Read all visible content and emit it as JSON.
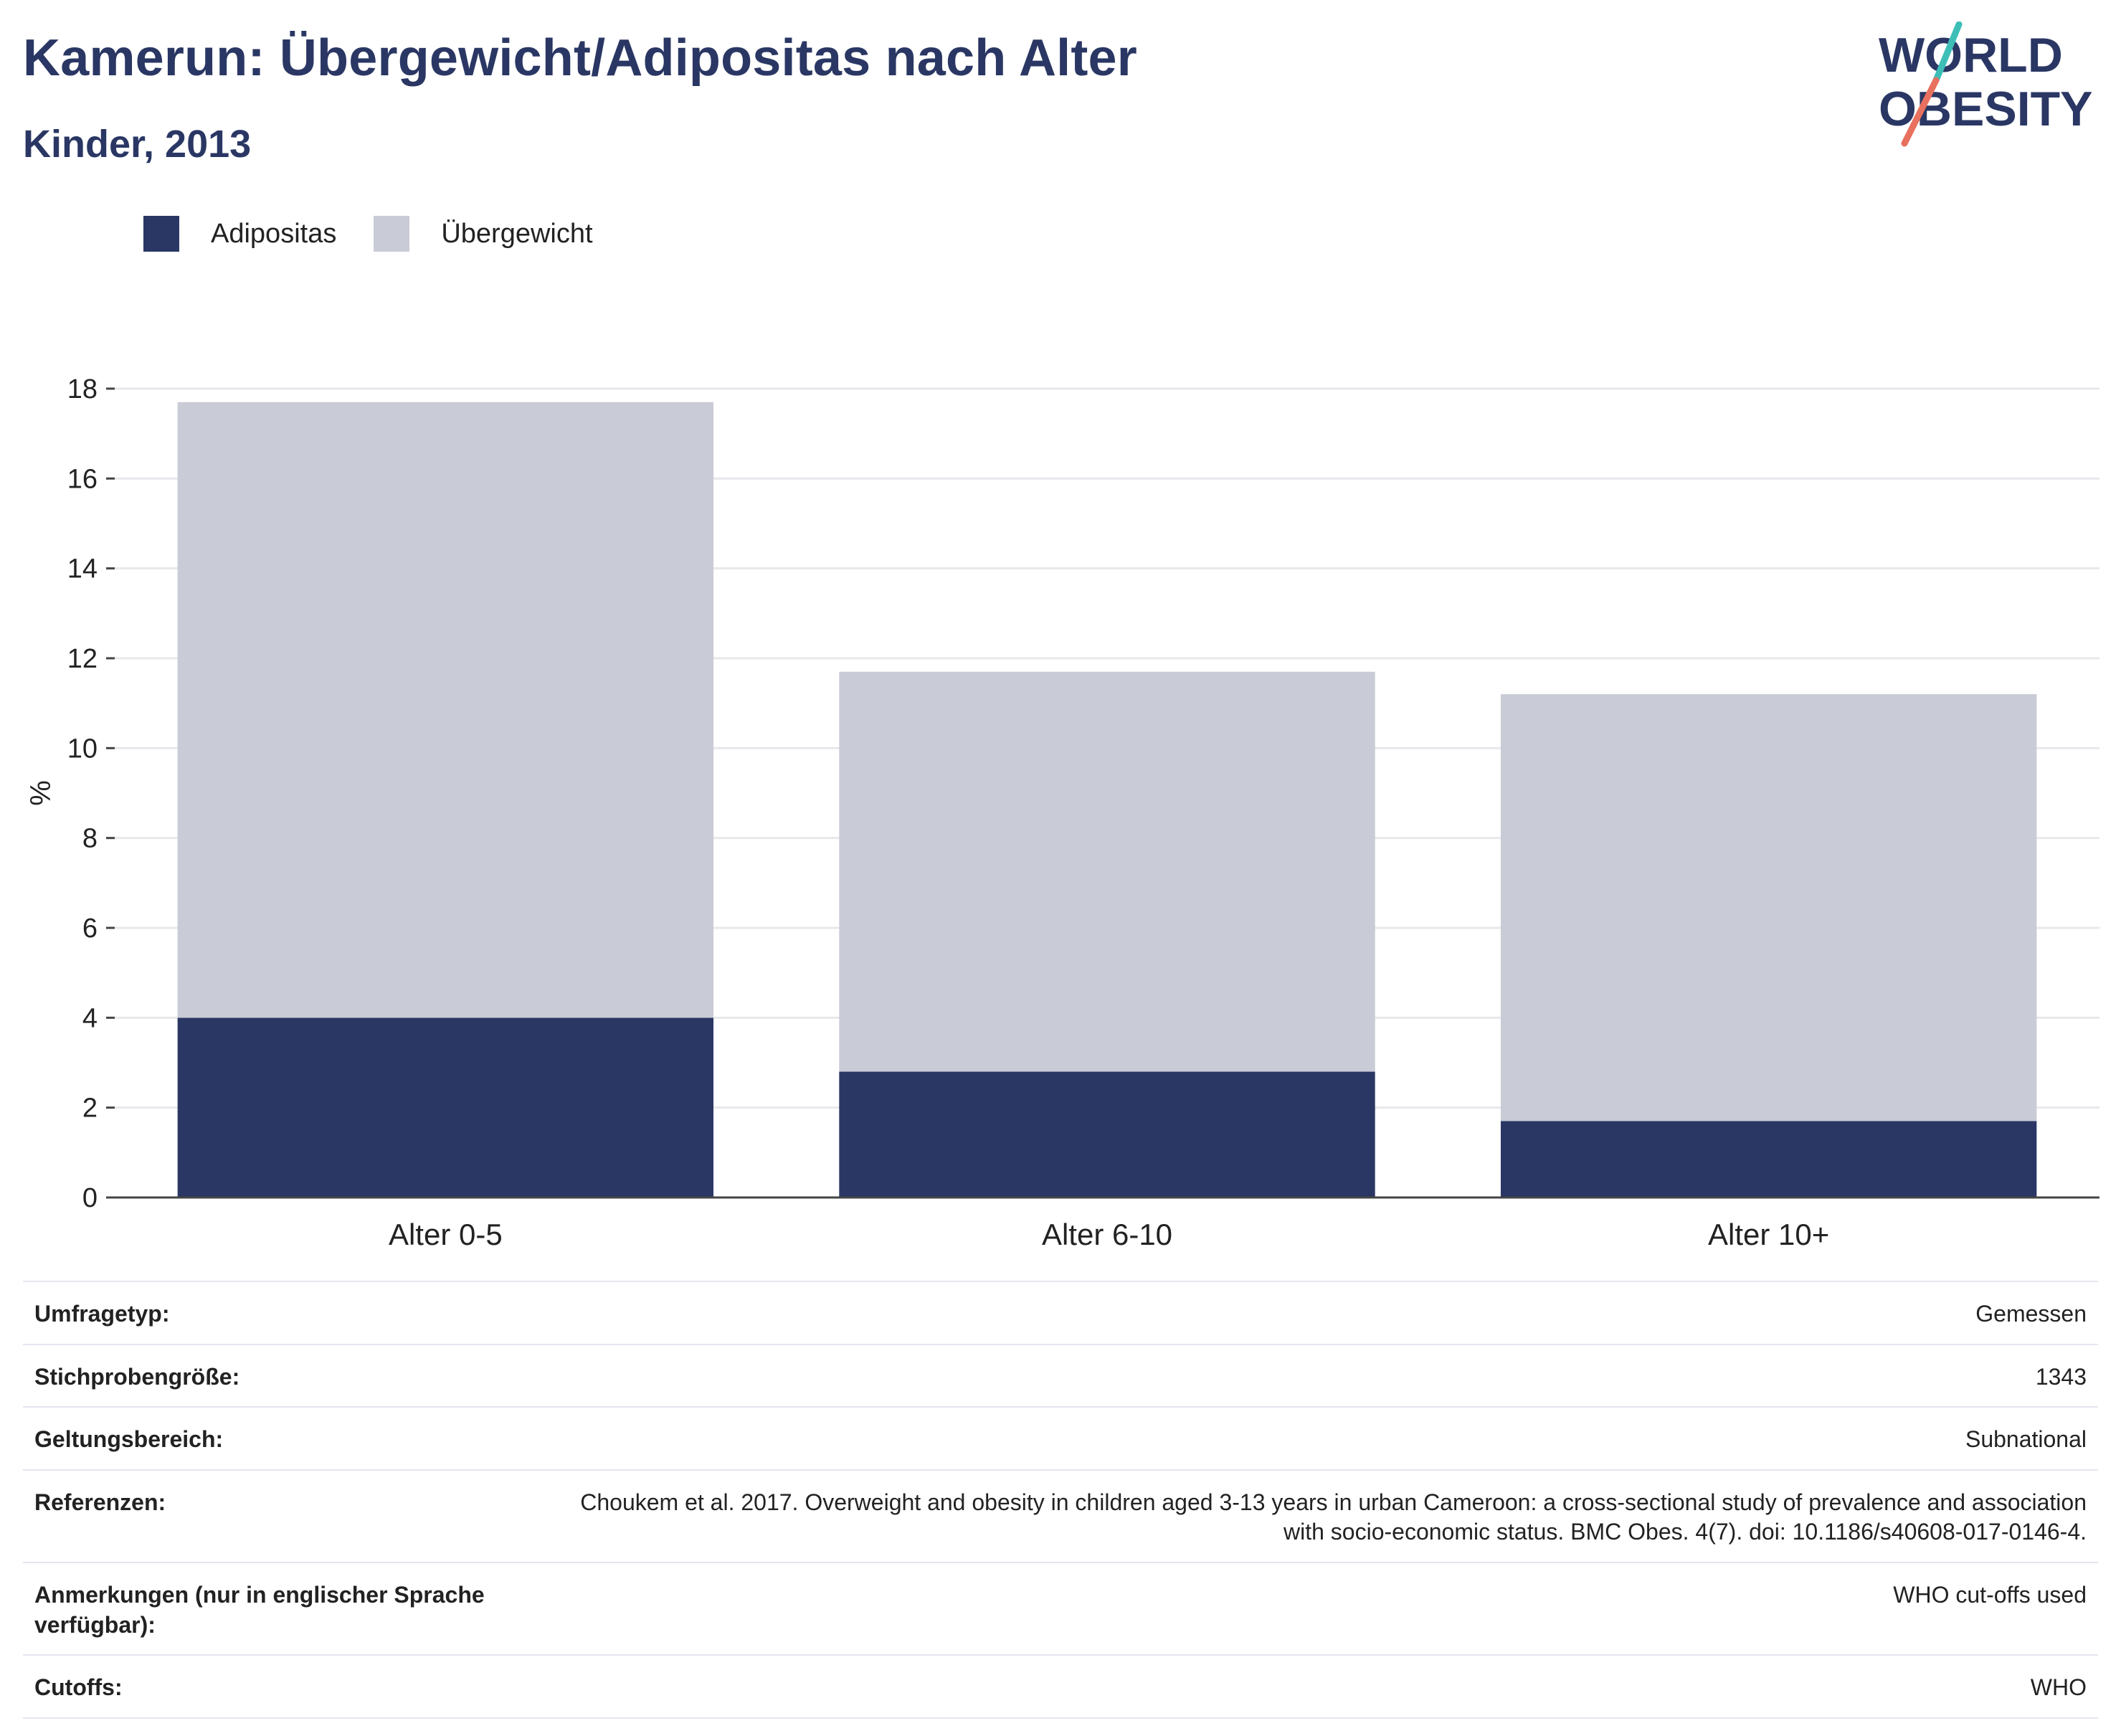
{
  "header": {
    "title": "Kamerun: Übergewicht/Adipositas nach Alter",
    "subtitle": "Kinder, 2013"
  },
  "logo": {
    "line1": "WORLD",
    "line2": "OBESITY",
    "accent_colors": [
      "#3dbfb8",
      "#e8705f"
    ]
  },
  "colors": {
    "obesity": "#2a3764",
    "overweight": "#c9cbd6",
    "grid": "#e8e8ec",
    "axis": "#444444"
  },
  "chart_data": {
    "type": "bar",
    "stacked": true,
    "categories": [
      "Alter 0-5",
      "Alter 6-10",
      "Alter 10+"
    ],
    "series": [
      {
        "name": "Adipositas",
        "values": [
          4.0,
          2.8,
          1.7
        ],
        "color": "#2a3764"
      },
      {
        "name": "Übergewicht",
        "values": [
          13.7,
          8.9,
          9.5
        ],
        "color": "#c9cbd6"
      }
    ],
    "ylabel": "%",
    "xlabel": "",
    "ylim": [
      0,
      18
    ],
    "yticks": [
      0,
      2,
      4,
      6,
      8,
      10,
      12,
      14,
      16,
      18
    ],
    "grid": true,
    "legend_position": "top-left"
  },
  "info": [
    {
      "label": "Umfragetyp:",
      "value": "Gemessen"
    },
    {
      "label": "Stichprobengröße:",
      "value": "1343"
    },
    {
      "label": "Geltungsbereich:",
      "value": "Subnational"
    },
    {
      "label": "Referenzen:",
      "value": "Choukem et al. 2017. Overweight and obesity in children aged 3-13 years in urban Cameroon: a cross-sectional study of prevalence and association with socio-economic status. BMC Obes. 4(7). doi: 10.1186/s40608-017-0146-4."
    },
    {
      "label": "Anmerkungen (nur in englischer Sprache verfügbar):",
      "value": "WHO cut-offs used"
    },
    {
      "label": "Cutoffs:",
      "value": "WHO"
    }
  ]
}
